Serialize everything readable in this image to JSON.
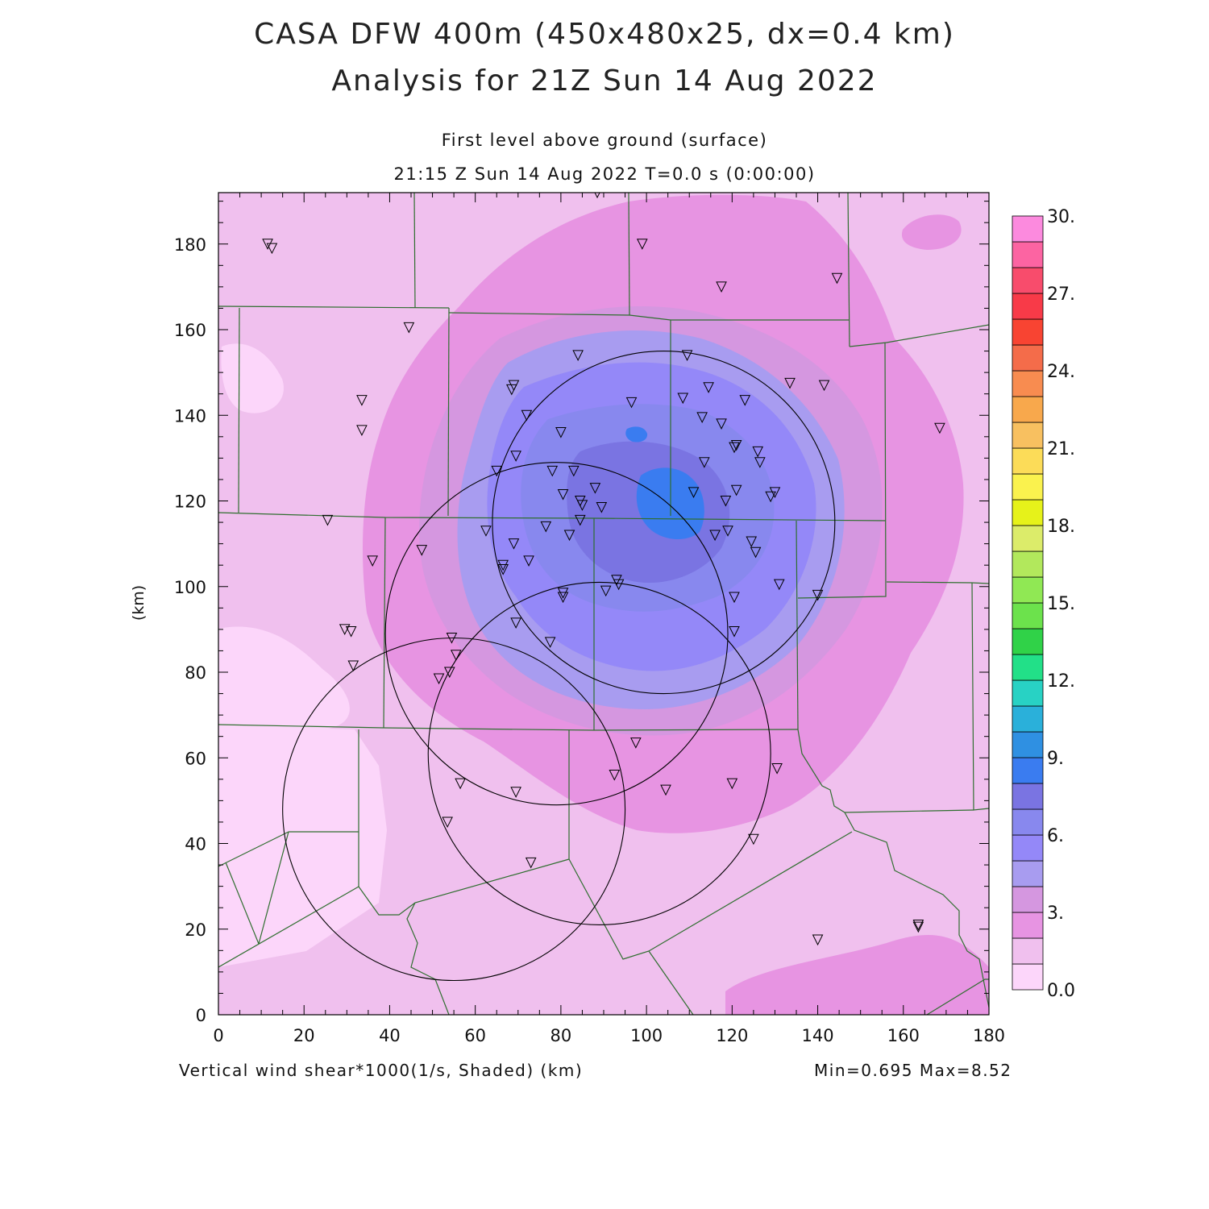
{
  "header": {
    "title_line1": "CASA DFW 400m (450x480x25, dx=0.4 km)",
    "title_line2": "Analysis for 21Z Sun 14 Aug 2022",
    "subtitle_level": "First level above ground (surface)",
    "subtitle_time": "21:15 Z Sun 14 Aug 2022   T=0.0 s (0:00:00)"
  },
  "footer": {
    "field_label": "Vertical wind shear*1000(1/s, Shaded)  (km)",
    "minmax": "Min=0.695 Max=8.52"
  },
  "axes": {
    "x_ticks": [
      "0",
      "20",
      "40",
      "60",
      "80",
      "100",
      "120",
      "140",
      "160",
      "180"
    ],
    "y_ticks": [
      "0",
      "20",
      "40",
      "60",
      "80",
      "100",
      "120",
      "140",
      "160",
      "180"
    ],
    "y_label": "(km)",
    "x_range": [
      0,
      180
    ],
    "y_range": [
      0,
      192
    ]
  },
  "colorbar": {
    "labels": [
      "0.0",
      "3.",
      "6.",
      "9.",
      "12.",
      "15.",
      "18.",
      "21.",
      "24.",
      "27.",
      "30."
    ],
    "colors": [
      "#fcd6fa",
      "#f0c0ee",
      "#e794e2",
      "#d597e0",
      "#a89cf0",
      "#9488f8",
      "#8888ee",
      "#7a74e2",
      "#3a7cf0",
      "#2f90e2",
      "#2ab0da",
      "#28d2c4",
      "#22e088",
      "#30d248",
      "#6ce24c",
      "#90e854",
      "#b2e85c",
      "#dcec6a",
      "#e6f21a",
      "#faf24e",
      "#fcdc58",
      "#f8c060",
      "#f8a84c",
      "#f88c50",
      "#f46c4a",
      "#f84432",
      "#f83a48",
      "#f84c6c",
      "#fc64a2",
      "#fc8ade"
    ]
  },
  "chart_data": {
    "type": "heatmap",
    "field": "Vertical wind shear*1000",
    "units": "1/s",
    "min": 0.695,
    "max": 8.52,
    "shade_levels": [
      0,
      1,
      2,
      3,
      4,
      5,
      6,
      7,
      8,
      9
    ],
    "radar_rings": [
      {
        "center_km": [
          104,
          115
        ],
        "radius_km": 40
      },
      {
        "center_km": [
          79,
          89
        ],
        "radius_km": 40
      },
      {
        "center_km": [
          89,
          61
        ],
        "radius_km": 40
      },
      {
        "center_km": [
          55,
          48
        ],
        "radius_km": 40
      }
    ],
    "stations_km": [
      [
        88.5,
        192
      ],
      [
        11.5,
        180
      ],
      [
        12.5,
        179
      ],
      [
        99,
        180
      ],
      [
        117.5,
        170
      ],
      [
        144.5,
        172
      ],
      [
        44.5,
        160.5
      ],
      [
        84,
        154
      ],
      [
        109.5,
        154
      ],
      [
        33.5,
        143.5
      ],
      [
        69,
        147
      ],
      [
        68.5,
        146
      ],
      [
        114.5,
        146.5
      ],
      [
        133.5,
        147.5
      ],
      [
        141.5,
        147
      ],
      [
        33.5,
        136.5
      ],
      [
        72,
        140
      ],
      [
        96.5,
        143
      ],
      [
        108.5,
        144
      ],
      [
        123,
        143.5
      ],
      [
        113,
        139.5
      ],
      [
        117.5,
        138
      ],
      [
        168.5,
        137
      ],
      [
        80,
        136
      ],
      [
        120.5,
        132.5
      ],
      [
        121,
        133
      ],
      [
        126,
        131.5
      ],
      [
        69.5,
        130.5
      ],
      [
        126.5,
        129
      ],
      [
        113.5,
        129
      ],
      [
        65,
        127
      ],
      [
        78,
        127
      ],
      [
        83,
        127
      ],
      [
        88,
        123
      ],
      [
        111,
        122
      ],
      [
        121,
        122.5
      ],
      [
        130,
        122
      ],
      [
        129,
        121
      ],
      [
        80.5,
        121.5
      ],
      [
        84.5,
        120
      ],
      [
        118.5,
        120
      ],
      [
        85,
        119
      ],
      [
        89.5,
        118.5
      ],
      [
        25.5,
        115.5
      ],
      [
        84.5,
        115.5
      ],
      [
        62.5,
        113
      ],
      [
        76.5,
        114
      ],
      [
        82,
        112
      ],
      [
        116,
        112
      ],
      [
        119,
        113
      ],
      [
        124.5,
        110.5
      ],
      [
        125.5,
        108
      ],
      [
        47.5,
        108.5
      ],
      [
        36,
        106
      ],
      [
        69,
        110
      ],
      [
        72.5,
        106
      ],
      [
        66.5,
        105
      ],
      [
        66.5,
        104
      ],
      [
        93,
        101.5
      ],
      [
        93.5,
        100.5
      ],
      [
        131,
        100.5
      ],
      [
        80.5,
        98.5
      ],
      [
        80.5,
        97.5
      ],
      [
        90.5,
        99
      ],
      [
        120.5,
        97.5
      ],
      [
        140,
        98
      ],
      [
        29.5,
        90
      ],
      [
        31,
        89.5
      ],
      [
        69.5,
        91.5
      ],
      [
        120.5,
        89.5
      ],
      [
        77.5,
        87
      ],
      [
        54.5,
        88
      ],
      [
        55.5,
        84
      ],
      [
        31.5,
        81.5
      ],
      [
        54,
        80
      ],
      [
        51.5,
        78.5
      ],
      [
        97.5,
        63.5
      ],
      [
        92.5,
        56
      ],
      [
        130.5,
        57.5
      ],
      [
        56.5,
        54
      ],
      [
        69.5,
        52
      ],
      [
        104.5,
        52.5
      ],
      [
        120,
        54
      ],
      [
        53.5,
        45
      ],
      [
        125,
        41
      ],
      [
        73,
        35.5
      ],
      [
        163.5,
        21
      ],
      [
        163.5,
        20.5
      ],
      [
        140,
        17.5
      ]
    ]
  },
  "map": {
    "boundary_color": "#2f6e2f",
    "ring_color": "#000000"
  }
}
